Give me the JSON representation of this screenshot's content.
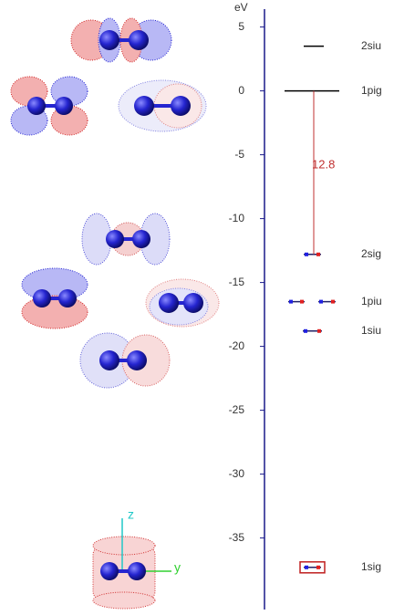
{
  "axis": {
    "label": "eV",
    "ylim": [
      -40.6,
      6.4
    ],
    "ticks": [
      5,
      0,
      -5,
      -10,
      -15,
      -20,
      -25,
      -30,
      -35
    ]
  },
  "levels": [
    {
      "label": "2siu",
      "energy": 3.5
    },
    {
      "label": "1pig",
      "energy": 0
    },
    {
      "label": "2sig",
      "energy": -12.8
    },
    {
      "label": "1piu",
      "energy": -16.5
    },
    {
      "label": "1siu",
      "energy": -18.8
    },
    {
      "label": "1sig",
      "energy": -37.3
    }
  ],
  "gap": 12.8,
  "axes_labels": {
    "z": "z",
    "y": "y"
  }
}
